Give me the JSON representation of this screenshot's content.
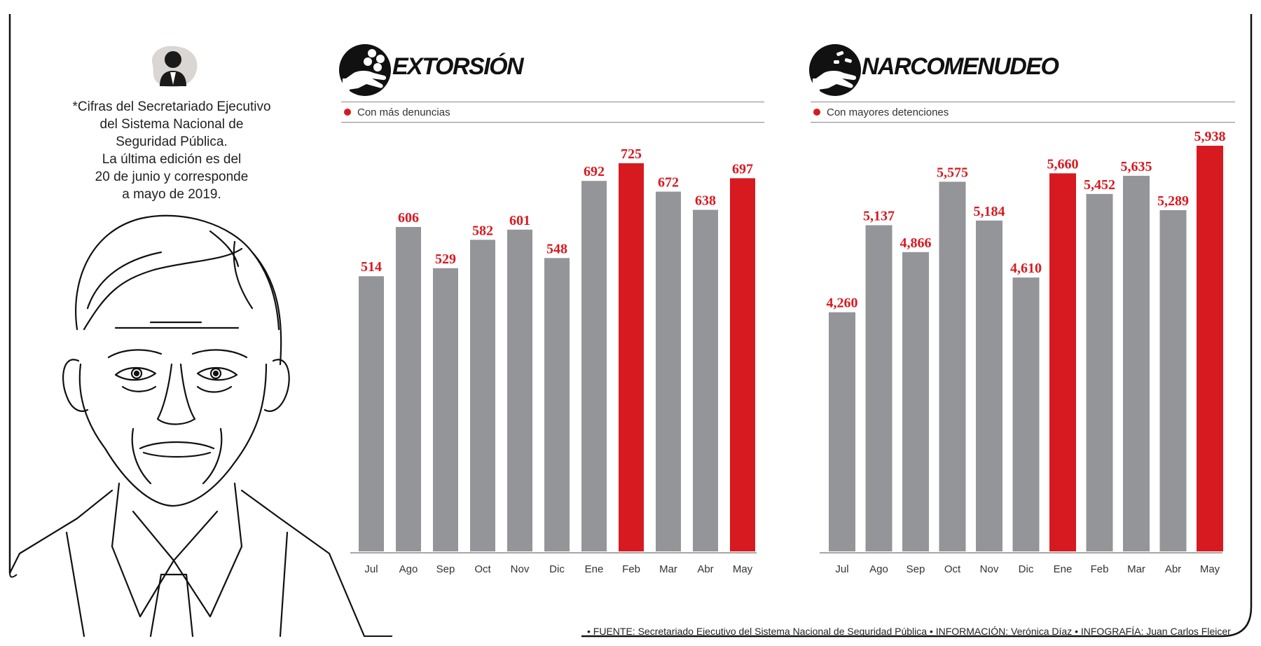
{
  "colors": {
    "accent": "#d71a20",
    "bar": "#939598",
    "axis": "#888888"
  },
  "note": {
    "lines": [
      "*Cifras del Secretariado Ejecutivo",
      "del Sistema Nacional de",
      "Seguridad Pública.",
      "La última edición es del",
      "20 de junio y corresponde",
      "a mayo de 2019."
    ]
  },
  "icons": {
    "person": "person-bust-icon",
    "extortion": "hand-with-coins-icon",
    "drugs": "hand-with-pills-icon"
  },
  "footer": "• FUENTE: Secretariado Ejecutivo del Sistema Nacional de Seguridad Pública • INFORMACIÓN: Verónica Díaz • INFOGRAFÍA: Juan Carlos Fleicer",
  "chart_data": [
    {
      "type": "bar",
      "title": "EXTORSIÓN",
      "subtitle": "Con más denuncias",
      "categories": [
        "Jul",
        "Ago",
        "Sep",
        "Oct",
        "Nov",
        "Dic",
        "Ene",
        "Feb",
        "Mar",
        "Abr",
        "May"
      ],
      "values": [
        514,
        606,
        529,
        582,
        601,
        548,
        692,
        725,
        672,
        638,
        697
      ],
      "value_labels": [
        "514",
        "606",
        "529",
        "582",
        "601",
        "548",
        "692",
        "725",
        "672",
        "638",
        "697"
      ],
      "highlighted": [
        "Feb",
        "May"
      ],
      "ylim": [
        0,
        725
      ],
      "grid": false
    },
    {
      "type": "bar",
      "title": "NARCOMENUDEO",
      "subtitle": "Con mayores detenciones",
      "categories": [
        "Jul",
        "Ago",
        "Sep",
        "Oct",
        "Nov",
        "Dic",
        "Ene",
        "Feb",
        "Mar",
        "Abr",
        "May"
      ],
      "values": [
        4260,
        5137,
        4866,
        5575,
        5184,
        4610,
        5660,
        5452,
        5635,
        5289,
        5938
      ],
      "value_labels": [
        "4,260",
        "5,137",
        "4,866",
        "5,575",
        "5,184",
        "4,610",
        "5,660",
        "5,452",
        "5,635",
        "5,289",
        "5,938"
      ],
      "highlighted": [
        "Ene",
        "May"
      ],
      "ylim": [
        1850,
        5938
      ],
      "grid": false
    }
  ]
}
